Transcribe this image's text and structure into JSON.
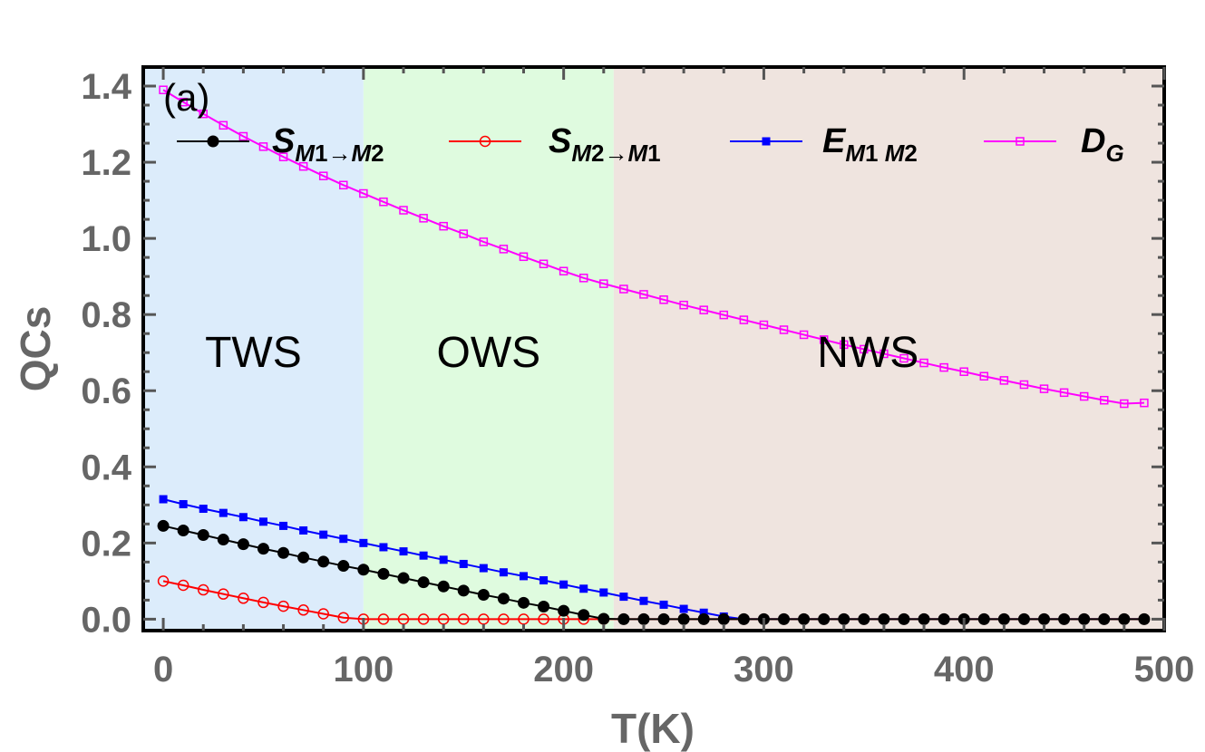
{
  "chart_data": {
    "type": "line",
    "panel_label": "(a)",
    "xlabel": "T(K)",
    "ylabel": "QCs",
    "xlim": [
      -10,
      500
    ],
    "ylim": [
      -0.03,
      1.45
    ],
    "x_ticks": [
      0,
      100,
      200,
      300,
      400,
      500
    ],
    "y_ticks": [
      0.0,
      0.2,
      0.4,
      0.6,
      0.8,
      1.0,
      1.2,
      1.4
    ],
    "x_tick_labels": [
      "0",
      "100",
      "200",
      "300",
      "400",
      "500"
    ],
    "y_tick_labels": [
      "0.0",
      "0.2",
      "0.4",
      "0.6",
      "0.8",
      "1.0",
      "1.2",
      "1.4"
    ],
    "grid": false,
    "legend_position": "top",
    "regions": [
      {
        "label": "TWS",
        "x_start": -10,
        "x_end": 100,
        "color": "#dcecfb"
      },
      {
        "label": "OWS",
        "x_start": 100,
        "x_end": 225,
        "color": "#dffbdf"
      },
      {
        "label": "NWS",
        "x_start": 225,
        "x_end": 500,
        "color": "#efe4df"
      }
    ],
    "x": [
      0,
      10,
      20,
      30,
      40,
      50,
      60,
      70,
      80,
      90,
      100,
      110,
      120,
      130,
      140,
      150,
      160,
      170,
      180,
      190,
      200,
      210,
      220,
      230,
      240,
      250,
      260,
      270,
      280,
      290,
      300,
      310,
      320,
      330,
      340,
      350,
      360,
      370,
      380,
      390,
      400,
      410,
      420,
      430,
      440,
      450,
      460,
      470,
      480,
      490
    ],
    "series": [
      {
        "name_main": "S",
        "name_sub": [
          "M",
          "1",
          "→M",
          "2"
        ],
        "color": "#000000",
        "marker": "filled-circle",
        "values": [
          0.245,
          0.233,
          0.221,
          0.209,
          0.197,
          0.185,
          0.174,
          0.162,
          0.151,
          0.14,
          0.13,
          0.119,
          0.108,
          0.097,
          0.086,
          0.075,
          0.064,
          0.054,
          0.043,
          0.033,
          0.022,
          0.011,
          0.001,
          0,
          0,
          0,
          0,
          0,
          0,
          0,
          0,
          0,
          0,
          0,
          0,
          0,
          0,
          0,
          0,
          0,
          0,
          0,
          0,
          0,
          0,
          0,
          0,
          0,
          0,
          0
        ]
      },
      {
        "name_main": "S",
        "name_sub": [
          "M",
          "2",
          "→M",
          "1"
        ],
        "color": "#ff0000",
        "marker": "open-circle",
        "values": [
          0.1,
          0.089,
          0.077,
          0.066,
          0.055,
          0.044,
          0.034,
          0.024,
          0.014,
          0.004,
          0,
          0,
          0,
          0,
          0,
          0,
          0,
          0,
          0,
          0,
          0,
          0,
          0,
          0,
          0,
          0,
          0,
          0,
          0,
          0,
          0,
          0,
          0,
          0,
          0,
          0,
          0,
          0,
          0,
          0,
          0,
          0,
          0,
          0,
          0,
          0,
          0,
          0,
          0,
          0
        ]
      },
      {
        "name_main": "E",
        "name_sub": [
          "M",
          "1",
          " M",
          "2"
        ],
        "color": "#0000ff",
        "marker": "filled-square",
        "values": [
          0.315,
          0.302,
          0.29,
          0.279,
          0.268,
          0.256,
          0.245,
          0.233,
          0.222,
          0.211,
          0.2,
          0.189,
          0.178,
          0.167,
          0.156,
          0.145,
          0.134,
          0.123,
          0.113,
          0.102,
          0.091,
          0.08,
          0.07,
          0.059,
          0.048,
          0.038,
          0.027,
          0.017,
          0.007,
          0.0,
          0,
          0,
          0,
          0,
          0,
          0,
          0,
          0,
          0,
          0,
          0,
          0,
          0,
          0,
          0,
          0,
          0,
          0,
          0,
          0
        ]
      },
      {
        "name_main": "D",
        "name_sub": [
          "G"
        ],
        "color": "#ff00ff",
        "marker": "open-square",
        "values": [
          1.39,
          1.358,
          1.327,
          1.297,
          1.268,
          1.241,
          1.214,
          1.189,
          1.164,
          1.14,
          1.118,
          1.096,
          1.074,
          1.053,
          1.032,
          1.012,
          0.991,
          0.972,
          0.952,
          0.933,
          0.914,
          0.896,
          0.881,
          0.867,
          0.853,
          0.839,
          0.825,
          0.812,
          0.799,
          0.786,
          0.773,
          0.76,
          0.747,
          0.734,
          0.721,
          0.709,
          0.697,
          0.685,
          0.673,
          0.661,
          0.65,
          0.638,
          0.627,
          0.616,
          0.605,
          0.595,
          0.585,
          0.575,
          0.566,
          0.568
        ]
      }
    ]
  }
}
